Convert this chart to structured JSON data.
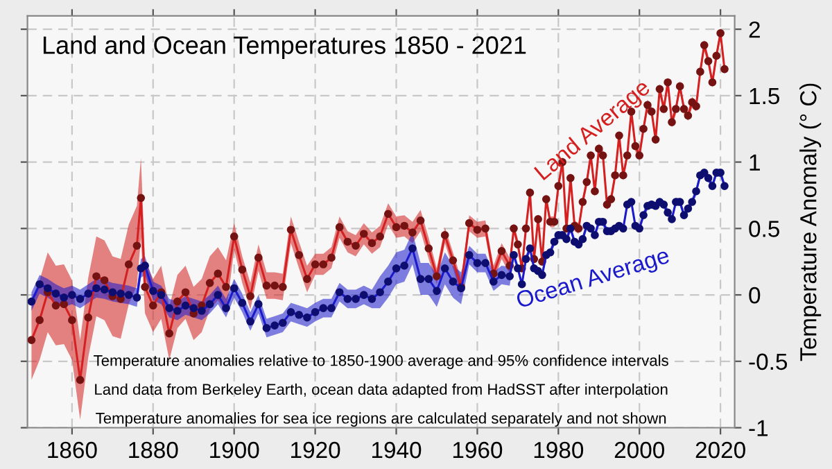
{
  "chart_data": {
    "type": "line",
    "title": "Land and Ocean Temperatures 1850 - 2021",
    "ylabel": "Temperature Anomaly (° C)",
    "annotations": [
      "Temperature anomalies relative to 1850-1900 average and 95% confidence intervals",
      "Land data from Berkeley Earth, ocean data adapted from HadSST after interpolation",
      "Temperature anomalies for sea ice regions are calculated separately and not shown"
    ],
    "x": [
      1850,
      1852,
      1854,
      1856,
      1858,
      1860,
      1862,
      1864,
      1866,
      1868,
      1870,
      1872,
      1874,
      1876,
      1877,
      1878,
      1880,
      1882,
      1884,
      1886,
      1888,
      1890,
      1892,
      1894,
      1896,
      1898,
      1900,
      1902,
      1904,
      1906,
      1908,
      1910,
      1912,
      1914,
      1916,
      1918,
      1920,
      1922,
      1924,
      1926,
      1928,
      1930,
      1932,
      1934,
      1936,
      1938,
      1940,
      1942,
      1944,
      1946,
      1948,
      1950,
      1952,
      1954,
      1956,
      1958,
      1960,
      1962,
      1964,
      1966,
      1968,
      1969,
      1970,
      1971,
      1972,
      1973,
      1974,
      1975,
      1976,
      1977,
      1978,
      1979,
      1980,
      1981,
      1982,
      1983,
      1984,
      1985,
      1986,
      1987,
      1988,
      1989,
      1990,
      1991,
      1992,
      1993,
      1994,
      1995,
      1996,
      1997,
      1998,
      1999,
      2000,
      2001,
      2002,
      2003,
      2004,
      2005,
      2006,
      2007,
      2008,
      2009,
      2010,
      2011,
      2012,
      2013,
      2014,
      2015,
      2016,
      2017,
      2018,
      2019,
      2020,
      2021
    ],
    "series": [
      {
        "name": "Land Average",
        "color": "#d42020",
        "values": [
          -0.34,
          -0.19,
          0.02,
          -0.08,
          -0.07,
          -0.19,
          -0.64,
          -0.17,
          0.14,
          0.11,
          -0.01,
          -0.03,
          0.23,
          0.37,
          0.73,
          0.06,
          -0.08,
          0.02,
          -0.29,
          -0.05,
          0.02,
          -0.14,
          -0.08,
          0.09,
          0.16,
          0.06,
          0.44,
          0.19,
          -0.01,
          0.28,
          0.07,
          0.07,
          0.06,
          0.49,
          0.3,
          0.12,
          0.23,
          0.23,
          0.28,
          0.51,
          0.4,
          0.37,
          0.46,
          0.39,
          0.44,
          0.61,
          0.51,
          0.52,
          0.47,
          0.56,
          0.35,
          0.14,
          0.45,
          0.26,
          0.06,
          0.54,
          0.49,
          0.5,
          0.16,
          0.33,
          0.22,
          0.5,
          0.38,
          0.2,
          0.5,
          0.77,
          0.27,
          0.57,
          0.25,
          0.72,
          0.55,
          0.55,
          0.82,
          1.0,
          0.5,
          0.88,
          0.52,
          0.5,
          0.7,
          0.85,
          1.05,
          0.78,
          1.1,
          1.05,
          0.68,
          0.72,
          0.9,
          1.2,
          0.9,
          1.05,
          1.38,
          1.12,
          1.05,
          1.25,
          1.43,
          1.38,
          1.17,
          1.55,
          1.4,
          1.6,
          1.3,
          1.4,
          1.57,
          1.4,
          1.35,
          1.45,
          1.42,
          1.68,
          1.88,
          1.76,
          1.6,
          1.8,
          1.97,
          1.7
        ],
        "lower": [
          -0.64,
          -0.49,
          -0.28,
          -0.38,
          -0.37,
          -0.49,
          -0.94,
          -0.47,
          -0.16,
          -0.19,
          -0.31,
          -0.33,
          -0.07,
          0.07,
          0.43,
          -0.14,
          -0.28,
          -0.18,
          -0.49,
          -0.25,
          -0.18,
          -0.34,
          -0.28,
          -0.11,
          -0.04,
          -0.14,
          0.34,
          0.09,
          -0.11,
          0.18,
          -0.03,
          -0.03,
          -0.04,
          0.39,
          0.2,
          0.02,
          0.15,
          0.15,
          0.2,
          0.43,
          0.32,
          0.29,
          0.38,
          0.31,
          0.36,
          0.53,
          0.43,
          0.44,
          0.39,
          0.48,
          0.27,
          0.08,
          0.39,
          0.2,
          0.0,
          0.48,
          0.43,
          0.44,
          0.1,
          0.27,
          0.16,
          0.46,
          0.34,
          0.16,
          0.46,
          0.73,
          0.23,
          0.53,
          0.21,
          0.68,
          0.51,
          0.51,
          0.78,
          0.96,
          0.46,
          0.84,
          0.48,
          0.46,
          0.66,
          0.81,
          1.01,
          0.74,
          1.06,
          1.01,
          0.64,
          0.68,
          0.86,
          1.16,
          0.86,
          1.01,
          1.34,
          1.08,
          1.01,
          1.21,
          1.39,
          1.34,
          1.13,
          1.51,
          1.36,
          1.56,
          1.26,
          1.36,
          1.53,
          1.36,
          1.31,
          1.41,
          1.38,
          1.64,
          1.84,
          1.72,
          1.56,
          1.76,
          1.93,
          1.66
        ],
        "upper": [
          -0.04,
          0.11,
          0.32,
          0.22,
          0.23,
          0.11,
          -0.34,
          0.13,
          0.44,
          0.41,
          0.29,
          0.27,
          0.53,
          0.67,
          1.03,
          0.26,
          0.12,
          0.22,
          -0.09,
          0.15,
          0.22,
          0.06,
          0.12,
          0.29,
          0.36,
          0.26,
          0.54,
          0.29,
          0.09,
          0.38,
          0.17,
          0.17,
          0.16,
          0.59,
          0.4,
          0.22,
          0.31,
          0.31,
          0.36,
          0.59,
          0.48,
          0.45,
          0.54,
          0.47,
          0.52,
          0.69,
          0.59,
          0.6,
          0.55,
          0.64,
          0.43,
          0.2,
          0.51,
          0.32,
          0.12,
          0.6,
          0.55,
          0.56,
          0.22,
          0.39,
          0.28,
          0.54,
          0.42,
          0.24,
          0.54,
          0.81,
          0.31,
          0.61,
          0.29,
          0.76,
          0.59,
          0.59,
          0.86,
          1.04,
          0.54,
          0.92,
          0.56,
          0.54,
          0.74,
          0.89,
          1.09,
          0.82,
          1.14,
          1.09,
          0.72,
          0.76,
          0.94,
          1.24,
          0.94,
          1.09,
          1.42,
          1.16,
          1.09,
          1.29,
          1.47,
          1.42,
          1.21,
          1.59,
          1.44,
          1.64,
          1.34,
          1.44,
          1.61,
          1.44,
          1.39,
          1.49,
          1.46,
          1.72,
          1.92,
          1.8,
          1.64,
          1.84,
          2.01,
          1.74
        ]
      },
      {
        "name": "Ocean Average",
        "color": "#1a1acc",
        "values": [
          -0.05,
          0.08,
          0.05,
          0.01,
          -0.02,
          0.0,
          -0.03,
          0.01,
          0.05,
          0.04,
          0.02,
          0.01,
          0.0,
          -0.02,
          0.2,
          0.22,
          0.03,
          0.0,
          -0.1,
          -0.12,
          -0.08,
          -0.1,
          -0.12,
          -0.07,
          0.0,
          -0.1,
          0.05,
          -0.06,
          -0.2,
          -0.07,
          -0.25,
          -0.23,
          -0.21,
          -0.13,
          -0.15,
          -0.17,
          -0.13,
          -0.1,
          -0.1,
          0.02,
          -0.03,
          -0.03,
          0.0,
          -0.03,
          0.02,
          0.1,
          0.2,
          0.22,
          0.35,
          0.12,
          0.12,
          0.03,
          0.2,
          0.1,
          0.05,
          0.3,
          0.24,
          0.24,
          0.1,
          0.15,
          0.14,
          0.3,
          0.2,
          0.08,
          0.27,
          0.35,
          0.2,
          0.18,
          0.15,
          0.3,
          0.32,
          0.4,
          0.45,
          0.45,
          0.42,
          0.5,
          0.4,
          0.38,
          0.42,
          0.52,
          0.5,
          0.45,
          0.55,
          0.55,
          0.48,
          0.48,
          0.5,
          0.52,
          0.5,
          0.68,
          0.7,
          0.52,
          0.5,
          0.6,
          0.67,
          0.68,
          0.67,
          0.7,
          0.68,
          0.62,
          0.57,
          0.7,
          0.7,
          0.6,
          0.65,
          0.7,
          0.78,
          0.9,
          0.92,
          0.88,
          0.82,
          0.92,
          0.92,
          0.82
        ],
        "lower": [
          -0.12,
          0.01,
          -0.02,
          -0.06,
          -0.09,
          -0.07,
          -0.1,
          -0.06,
          -0.02,
          -0.03,
          -0.05,
          -0.06,
          -0.07,
          -0.09,
          0.13,
          0.15,
          -0.04,
          -0.07,
          -0.17,
          -0.19,
          -0.15,
          -0.17,
          -0.19,
          -0.14,
          -0.07,
          -0.17,
          -0.02,
          -0.13,
          -0.27,
          -0.14,
          -0.32,
          -0.3,
          -0.28,
          -0.2,
          -0.22,
          -0.24,
          -0.2,
          -0.17,
          -0.17,
          -0.05,
          -0.1,
          -0.1,
          -0.07,
          -0.1,
          -0.1,
          -0.02,
          0.08,
          0.1,
          0.23,
          0.0,
          0.0,
          -0.09,
          0.08,
          -0.02,
          -0.07,
          0.23,
          0.17,
          0.17,
          0.03,
          0.08,
          0.07,
          0.27,
          0.17,
          0.05,
          0.24,
          0.32,
          0.17,
          0.15,
          0.12,
          0.27,
          0.29,
          0.37,
          0.42,
          0.42,
          0.39,
          0.47,
          0.37,
          0.35,
          0.39,
          0.49,
          0.47,
          0.42,
          0.52,
          0.52,
          0.45,
          0.45,
          0.47,
          0.49,
          0.47,
          0.65,
          0.67,
          0.49,
          0.47,
          0.57,
          0.64,
          0.65,
          0.64,
          0.67,
          0.65,
          0.59,
          0.54,
          0.67,
          0.67,
          0.57,
          0.62,
          0.67,
          0.75,
          0.87,
          0.89,
          0.85,
          0.79,
          0.89,
          0.89,
          0.79
        ],
        "upper": [
          0.02,
          0.15,
          0.12,
          0.08,
          0.05,
          0.07,
          0.04,
          0.08,
          0.12,
          0.11,
          0.09,
          0.08,
          0.07,
          0.05,
          0.27,
          0.29,
          0.1,
          0.07,
          -0.03,
          -0.05,
          -0.01,
          -0.03,
          -0.05,
          0.0,
          0.07,
          -0.03,
          0.12,
          0.01,
          -0.13,
          0.0,
          -0.18,
          -0.16,
          -0.14,
          -0.06,
          -0.08,
          -0.1,
          -0.06,
          -0.03,
          -0.03,
          0.09,
          0.04,
          0.04,
          0.07,
          0.04,
          0.14,
          0.22,
          0.32,
          0.34,
          0.47,
          0.24,
          0.24,
          0.15,
          0.32,
          0.22,
          0.17,
          0.37,
          0.31,
          0.31,
          0.17,
          0.22,
          0.21,
          0.33,
          0.23,
          0.11,
          0.3,
          0.38,
          0.23,
          0.21,
          0.18,
          0.33,
          0.35,
          0.43,
          0.48,
          0.48,
          0.45,
          0.53,
          0.43,
          0.41,
          0.45,
          0.55,
          0.53,
          0.48,
          0.58,
          0.58,
          0.51,
          0.51,
          0.53,
          0.55,
          0.53,
          0.71,
          0.73,
          0.55,
          0.53,
          0.63,
          0.7,
          0.71,
          0.7,
          0.73,
          0.71,
          0.65,
          0.6,
          0.73,
          0.73,
          0.63,
          0.68,
          0.73,
          0.81,
          0.93,
          0.95,
          0.91,
          0.85,
          0.95,
          0.95,
          0.85
        ]
      }
    ],
    "xlim": [
      1849,
      2023.5
    ],
    "ylim": [
      -1,
      2.1
    ],
    "xticks": [
      1860,
      1880,
      1900,
      1920,
      1940,
      1960,
      1980,
      2000,
      2020
    ],
    "yticks": [
      -1,
      -0.5,
      0,
      0.5,
      1,
      1.5,
      2
    ],
    "grid": true,
    "legend": false,
    "marker": "circle",
    "line_style": "solid"
  }
}
